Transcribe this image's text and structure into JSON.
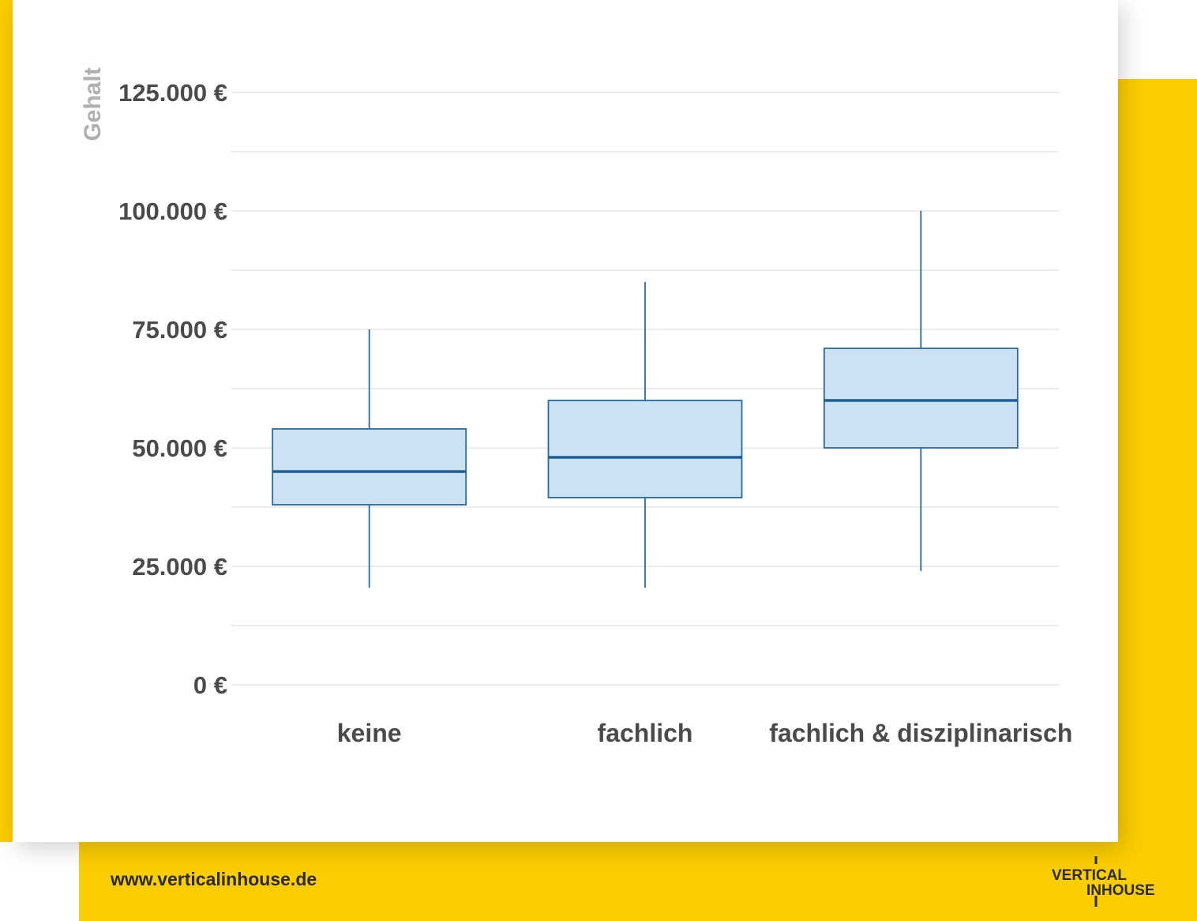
{
  "footer": {
    "url": "www.verticalinhouse.de"
  },
  "logo": {
    "text_top": "VERTICAL",
    "text_bottom": "INHOUSE"
  },
  "colors": {
    "accent_yellow": "#fccd00",
    "box_fill": "#cce1f2",
    "box_stroke": "#2a6a9c",
    "median": "#1d5f94",
    "grid": "#d8d8d8"
  },
  "chart_data": {
    "type": "box",
    "ylabel": "Gehalt",
    "xlabel": "",
    "ylim": [
      0,
      130000
    ],
    "yticks": [
      {
        "value": 0,
        "label": "0 €"
      },
      {
        "value": 25000,
        "label": "25.000 €"
      },
      {
        "value": 50000,
        "label": "50.000 €"
      },
      {
        "value": 75000,
        "label": "75.000 €"
      },
      {
        "value": 100000,
        "label": "100.000 €"
      },
      {
        "value": 125000,
        "label": "125.000 €"
      }
    ],
    "minor_grid": [
      12500,
      37500,
      62500,
      87500,
      112500
    ],
    "categories": [
      "keine",
      "fachlich",
      "fachlich & disziplinarisch"
    ],
    "boxes": [
      {
        "category": "keine",
        "min": 20500,
        "q1": 38000,
        "median": 45000,
        "q3": 54000,
        "max": 75000
      },
      {
        "category": "fachlich",
        "min": 20500,
        "q1": 39500,
        "median": 48000,
        "q3": 60000,
        "max": 85000
      },
      {
        "category": "fachlich & disziplinarisch",
        "min": 24000,
        "q1": 50000,
        "median": 60000,
        "q3": 71000,
        "max": 100000
      }
    ],
    "grid": true,
    "legend": "none"
  }
}
